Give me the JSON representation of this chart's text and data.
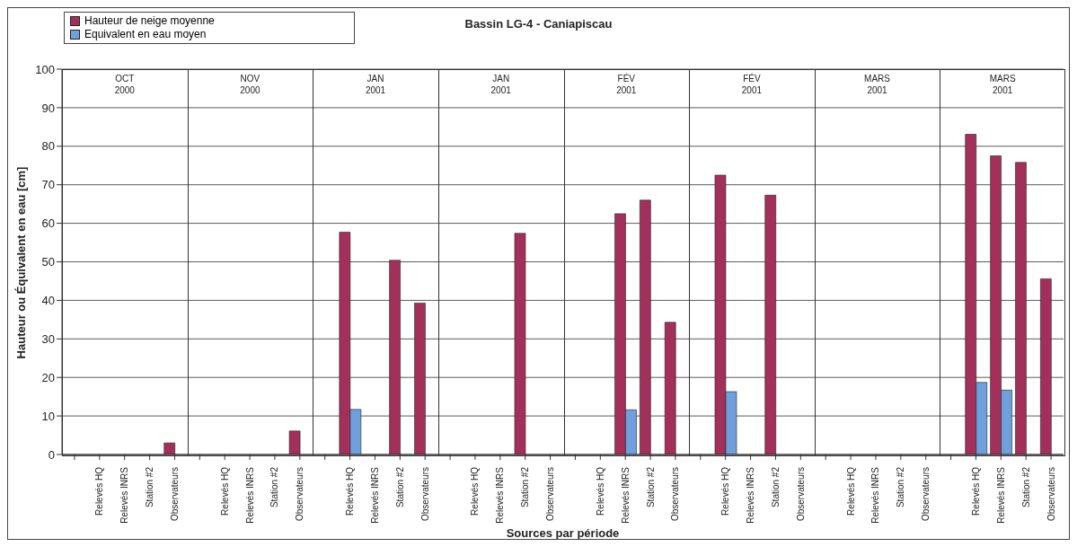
{
  "chart_data": {
    "type": "bar",
    "title": "Bassin LG-4 - Caniapiscau",
    "xlabel": "Sources par période",
    "ylabel": "Hauteur ou Équivalent en eau [cm]",
    "categories": [
      null,
      "Relevés HQ",
      "Relevés INRS",
      "Station #2",
      "Observateurs",
      null,
      "Relevés HQ",
      "Relevés INRS",
      "Station #2",
      "Observateurs",
      null,
      "Relevés HQ",
      "Relevés INRS",
      "Station #2",
      "Observateurs",
      null,
      "Relevés HQ",
      "Relevés INRS",
      "Station #2",
      "Observateurs",
      null,
      "Relevés HQ",
      "Relevés INRS",
      "Station #2",
      "Observateurs",
      null,
      "Relevés HQ",
      "Relevés INRS",
      "Station #2",
      "Observateurs",
      null,
      "Relevés HQ",
      "Relevés INRS",
      "Station #2",
      "Observateurs",
      null,
      "Relevés HQ",
      "Relevés INRS",
      "Station #2",
      "Observateurs"
    ],
    "series": [
      {
        "name": "Hauteur de neige moyenne",
        "color": "#a3305a",
        "values": [
          null,
          null,
          null,
          null,
          3.0,
          null,
          null,
          null,
          null,
          6.1,
          null,
          57.7,
          null,
          50.4,
          39.3,
          null,
          null,
          null,
          57.4,
          null,
          null,
          null,
          62.5,
          66.0,
          34.3,
          null,
          72.5,
          null,
          67.3,
          null,
          null,
          null,
          null,
          null,
          null,
          null,
          83.1,
          77.5,
          75.8,
          45.6
        ]
      },
      {
        "name": "Equivalent en eau moyen",
        "color": "#6fa0dc",
        "values": [
          null,
          null,
          null,
          null,
          null,
          null,
          null,
          null,
          null,
          null,
          null,
          11.7,
          null,
          null,
          null,
          null,
          null,
          null,
          null,
          null,
          null,
          null,
          11.6,
          null,
          null,
          null,
          16.3,
          null,
          null,
          null,
          null,
          null,
          null,
          null,
          null,
          null,
          18.7,
          16.7,
          null,
          null
        ]
      }
    ],
    "annotations": [
      "OCT\n2000",
      "NOV\n2000",
      "JAN\n2001",
      "JAN\n2001",
      "FÉV\n2001",
      "FÉV\n2001",
      "MARS\n2001",
      "MARS\n2001"
    ],
    "ylim": [
      0,
      100
    ],
    "yticks": [
      0,
      10,
      20,
      30,
      40,
      50,
      60,
      70,
      80,
      90,
      100
    ],
    "grid": "y",
    "legend": "top left"
  }
}
